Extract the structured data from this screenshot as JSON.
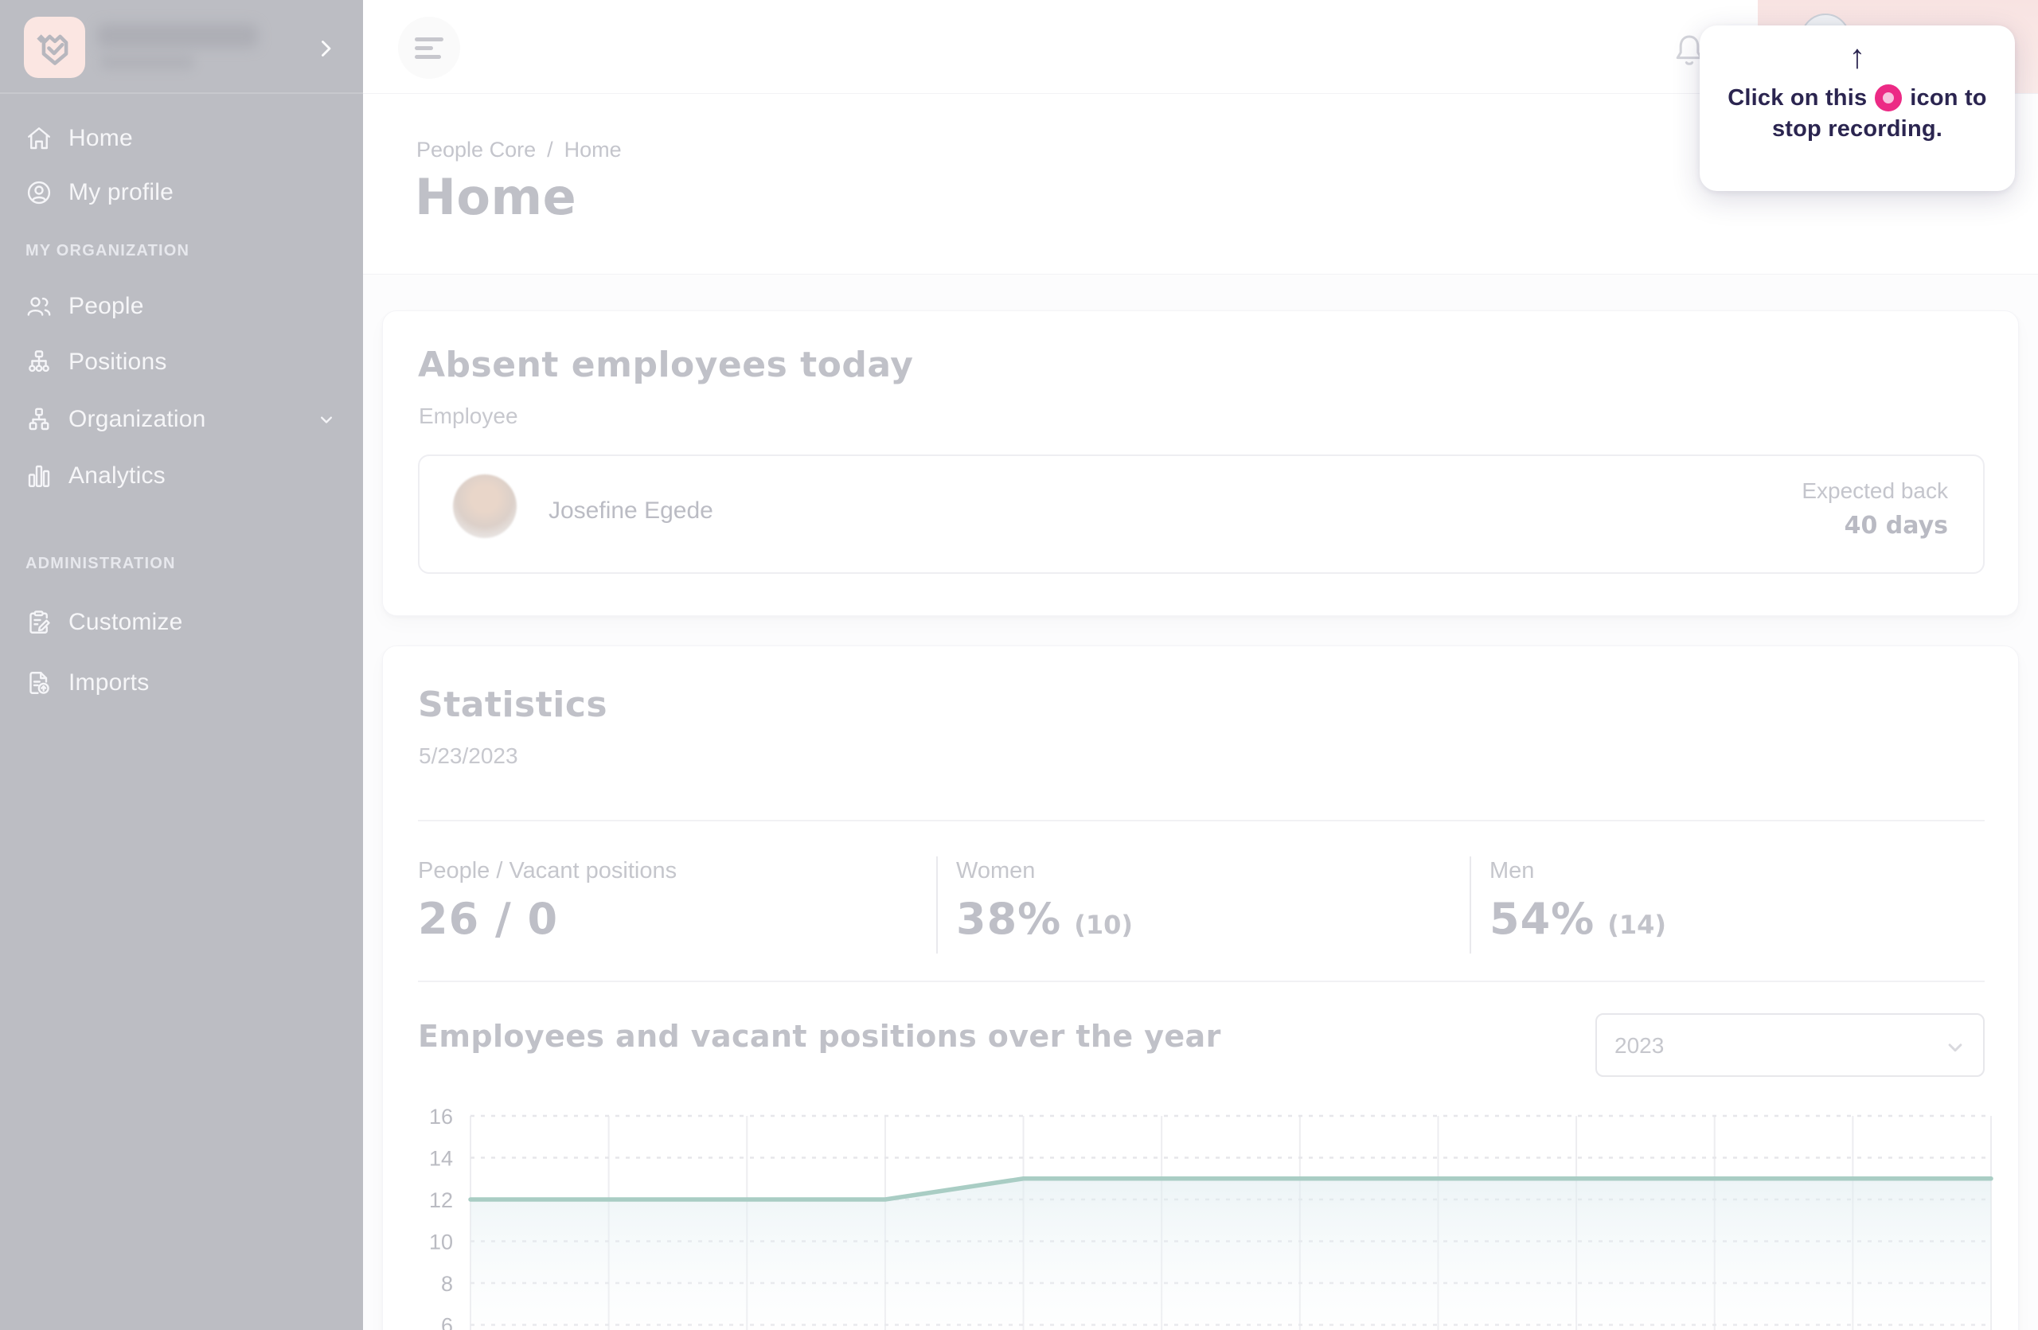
{
  "app": {
    "sidebar_bg": "#bcbdc3",
    "logo_bg": "#fbe6e2",
    "accent_record_pink": "#ec2a85"
  },
  "sidebar": {
    "brand": {
      "logo_icon": "heart-check-logo",
      "name_blurred": true,
      "collapse_icon": "chevron-right"
    },
    "primary": [
      {
        "label": "Home",
        "icon": "home-icon"
      },
      {
        "label": "My profile",
        "icon": "user-circle-icon"
      }
    ],
    "sections": [
      {
        "label": "MY ORGANIZATION",
        "items": [
          {
            "label": "People",
            "icon": "people-icon"
          },
          {
            "label": "Positions",
            "icon": "org-chart-icon"
          },
          {
            "label": "Organization",
            "icon": "hierarchy-icon",
            "expand_icon": "chevron-down"
          },
          {
            "label": "Analytics",
            "icon": "bar-chart-icon"
          }
        ]
      },
      {
        "label": "ADMINISTRATION",
        "items": [
          {
            "label": "Customize",
            "icon": "clipboard-edit-icon"
          },
          {
            "label": "Imports",
            "icon": "document-upload-icon"
          }
        ]
      }
    ]
  },
  "topbar": {
    "menu_icon": "hamburger-menu",
    "bell_icon": "notification-bell",
    "avatar": "user-avatar"
  },
  "breadcrumb": {
    "parent": "People Core",
    "separator": "/",
    "current": "Home"
  },
  "page": {
    "title": "Home"
  },
  "absent_card": {
    "title": "Absent employees today",
    "column_label": "Employee",
    "rows": [
      {
        "name": "Josefine Egede",
        "expected_back_label": "Expected back",
        "expected_back_value": "40 days"
      }
    ]
  },
  "statistics_card": {
    "title": "Statistics",
    "date": "5/23/2023",
    "metrics": [
      {
        "label": "People / Vacant positions",
        "value": "26 / 0",
        "sub": ""
      },
      {
        "label": "Women",
        "value": "38%",
        "sub": "(10)"
      },
      {
        "label": "Men",
        "value": "54%",
        "sub": "(14)"
      }
    ]
  },
  "chart_section": {
    "year_selected": "2023"
  },
  "chart_data": {
    "type": "line",
    "title": "Employees and vacant positions over the year",
    "x_points": 12,
    "x_axis_labels_visible": false,
    "series": [
      {
        "name": "employees",
        "values": [
          12,
          12,
          12,
          12,
          13,
          13,
          13,
          13,
          13,
          13,
          13,
          13
        ],
        "color": "#a9cdc4",
        "fill_top": "rgba(221,235,239,0.55)",
        "fill_bottom": "rgba(250,252,253,0.12)"
      }
    ],
    "yticks": [
      16,
      14,
      12,
      10,
      8,
      6
    ],
    "y_axis_visible_range": [
      6,
      16
    ],
    "grid": {
      "vertical": "solid",
      "horizontal": "dashed",
      "vline_color": "#ededf0",
      "hline_color": "#e6e6ea"
    },
    "tick_label_color": "#babbc2"
  },
  "recording_tooltip": {
    "arrow": "↑",
    "line1_before": "Click on this",
    "line1_after": "icon to",
    "line2": "stop recording.",
    "icon": "record-stop-icon",
    "icon_ring_color": "#ec2a85",
    "icon_center_color": "#f7c3de",
    "text_color": "#2b2550"
  }
}
